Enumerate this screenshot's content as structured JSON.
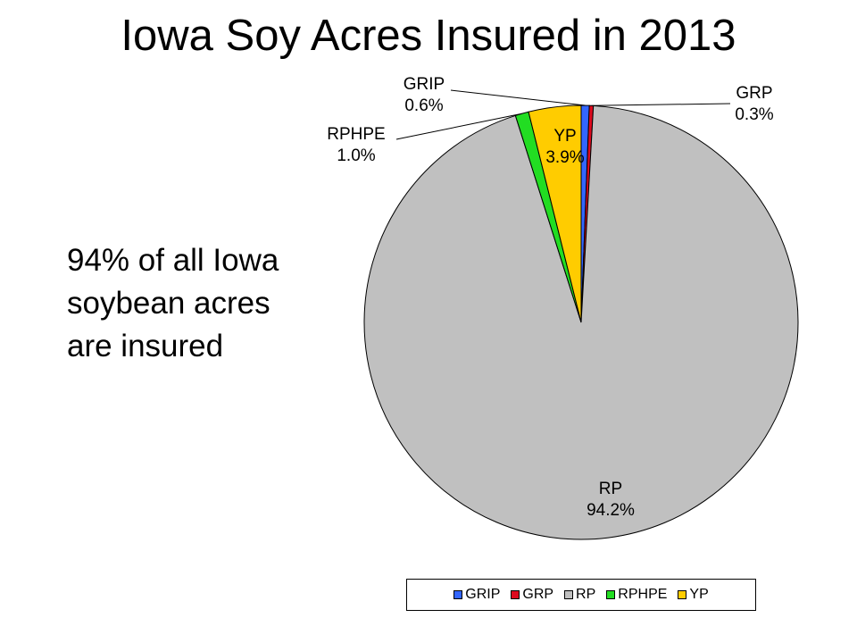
{
  "title": "Iowa Soy Acres Insured in 2013",
  "note_lines": [
    "94% of all Iowa",
    "soybean acres",
    "are insured"
  ],
  "chart_data": {
    "type": "pie",
    "title": "Iowa Soy Acres Insured in 2013",
    "start_angle_deg": 90,
    "direction": "clockwise",
    "legend_position": "bottom",
    "slices": [
      {
        "name": "GRIP",
        "value": 0.6,
        "label": "0.6%",
        "color": "#3366ff"
      },
      {
        "name": "GRP",
        "value": 0.3,
        "label": "0.3%",
        "color": "#dd0a1e"
      },
      {
        "name": "RP",
        "value": 94.2,
        "label": "94.2%",
        "color": "#c0c0c0"
      },
      {
        "name": "RPHPE",
        "value": 1.0,
        "label": "1.0%",
        "color": "#22dd22"
      },
      {
        "name": "YP",
        "value": 3.9,
        "label": "3.9%",
        "color": "#ffcc00"
      }
    ]
  }
}
